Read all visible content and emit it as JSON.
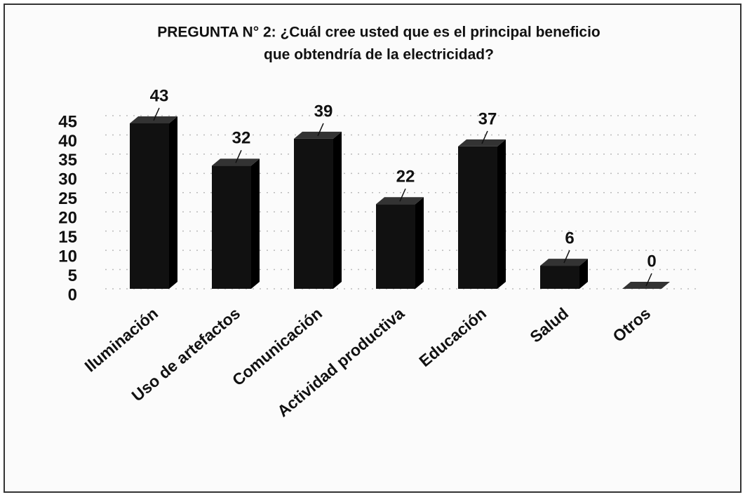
{
  "chart_data": {
    "type": "bar",
    "title": [
      "PREGUNTA N° 2: ¿Cuál cree usted que es el principal beneficio",
      "que obtendría de la electricidad?"
    ],
    "categories": [
      "Iluminación",
      "Uso de artefactos",
      "Comunicación",
      "Actividad productiva",
      "Educación",
      "Salud",
      "Otros"
    ],
    "values": [
      43,
      32,
      39,
      22,
      37,
      6,
      0
    ],
    "color": "#111111",
    "ylim": [
      0,
      45
    ],
    "yticks": [
      0,
      5,
      10,
      15,
      20,
      25,
      30,
      35,
      40,
      45
    ],
    "grid": true
  }
}
